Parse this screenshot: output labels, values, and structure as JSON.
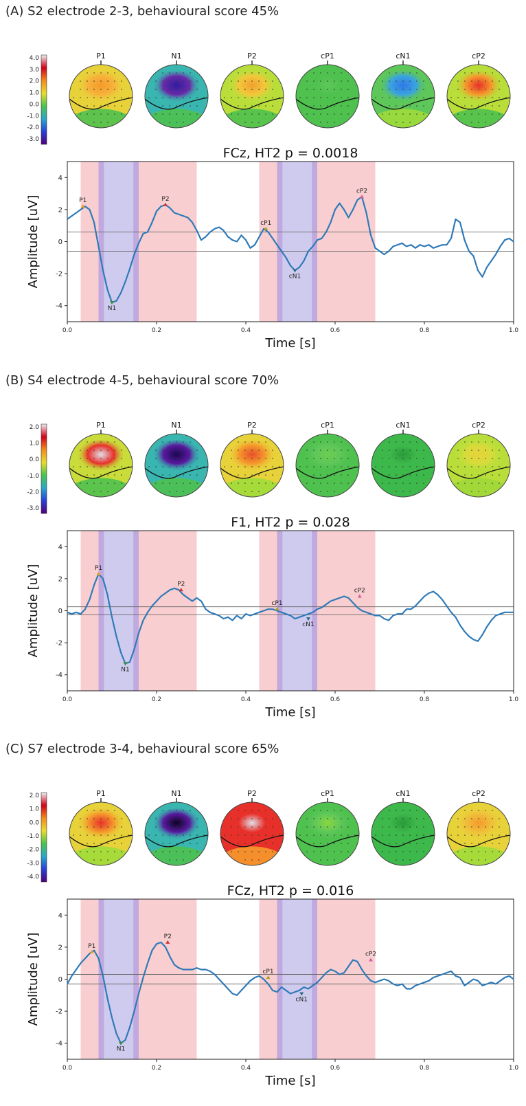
{
  "chart_data": [
    {
      "type": "line",
      "title": "(A) S2 electrode 2-3, behavioural score 45%",
      "subtitle": "FCz, HT2 p = 0.0018",
      "xlabel": "Time [s]",
      "ylabel": "Amplitude [uV]",
      "xlim": [
        0,
        1
      ],
      "ylim": [
        -5,
        5
      ],
      "xticks": [
        "0.0",
        "0.2",
        "0.4",
        "0.6",
        "0.8",
        "1.0"
      ],
      "yticks": [
        "-4",
        "-2",
        "0",
        "2",
        "4"
      ],
      "threshold_lines": [
        0.6,
        -0.6
      ],
      "windows": [
        {
          "start": 0.03,
          "end": 0.29,
          "color": "#f7c5c8"
        },
        {
          "start": 0.07,
          "end": 0.16,
          "color": "#c8caf5"
        },
        {
          "start": 0.43,
          "end": 0.69,
          "color": "#f7c5c8"
        },
        {
          "start": 0.47,
          "end": 0.56,
          "color": "#c8caf5"
        }
      ],
      "series": [
        {
          "x": [
            0,
            0.01,
            0.02,
            0.03,
            0.04,
            0.05,
            0.06,
            0.07,
            0.08,
            0.09,
            0.1,
            0.11,
            0.12,
            0.13,
            0.14,
            0.15,
            0.16,
            0.17,
            0.18,
            0.19,
            0.2,
            0.21,
            0.22,
            0.23,
            0.24,
            0.25,
            0.26,
            0.27,
            0.28,
            0.29,
            0.3,
            0.31,
            0.32,
            0.33,
            0.34,
            0.35,
            0.36,
            0.37,
            0.38,
            0.39,
            0.4,
            0.41,
            0.42,
            0.43,
            0.44,
            0.45,
            0.46,
            0.47,
            0.48,
            0.49,
            0.5,
            0.51,
            0.52,
            0.53,
            0.54,
            0.55,
            0.56,
            0.57,
            0.58,
            0.59,
            0.6,
            0.61,
            0.62,
            0.63,
            0.64,
            0.65,
            0.66,
            0.67,
            0.68,
            0.69,
            0.7,
            0.71,
            0.72,
            0.73,
            0.74,
            0.75,
            0.76,
            0.77,
            0.78,
            0.79,
            0.8,
            0.81,
            0.82,
            0.83,
            0.84,
            0.85,
            0.86,
            0.87,
            0.88,
            0.89,
            0.9,
            0.91,
            0.92,
            0.93,
            0.94,
            0.95,
            0.96,
            0.97,
            0.98,
            0.99,
            1.0
          ],
          "y": [
            1.4,
            1.6,
            1.8,
            2.0,
            2.2,
            2.0,
            1.2,
            -0.3,
            -1.8,
            -3.0,
            -3.8,
            -3.7,
            -3.2,
            -2.5,
            -1.7,
            -0.8,
            -0.1,
            0.5,
            0.6,
            1.2,
            1.9,
            2.2,
            2.3,
            2.1,
            1.8,
            1.7,
            1.6,
            1.5,
            1.2,
            0.7,
            0.1,
            0.3,
            0.6,
            0.8,
            0.9,
            0.7,
            0.3,
            0.1,
            0.0,
            0.4,
            0.1,
            -0.4,
            -0.2,
            0.3,
            0.8,
            0.6,
            0.2,
            -0.2,
            -0.6,
            -1.0,
            -1.5,
            -1.8,
            -1.6,
            -1.2,
            -0.6,
            -0.3,
            0.1,
            0.2,
            0.6,
            1.2,
            2.0,
            2.4,
            2.0,
            1.5,
            2.0,
            2.6,
            2.8,
            1.8,
            0.4,
            -0.4,
            -0.6,
            -0.8,
            -0.6,
            -0.3,
            -0.2,
            -0.1,
            -0.3,
            -0.2,
            -0.4,
            -0.2,
            -0.3,
            -0.2,
            -0.4,
            -0.3,
            -0.2,
            -0.2,
            0.2,
            1.4,
            1.2,
            0.1,
            -0.6,
            -0.9,
            -1.8,
            -2.2,
            -1.6,
            -1.2,
            -0.8,
            -0.3,
            0.1,
            0.2,
            0.0
          ]
        }
      ],
      "peaks": [
        {
          "label": "P1",
          "x": 0.035,
          "y": 2.2,
          "color": "#e8a020"
        },
        {
          "label": "N1",
          "x": 0.1,
          "y": -3.8,
          "color": "#3a8f3a"
        },
        {
          "label": "P2",
          "x": 0.22,
          "y": 2.3,
          "color": "#d23030"
        },
        {
          "label": "cP1",
          "x": 0.445,
          "y": 0.8,
          "color": "#b0a020"
        },
        {
          "label": "cN1",
          "x": 0.51,
          "y": -1.8,
          "color": "#2a6a8a"
        },
        {
          "label": "cP2",
          "x": 0.66,
          "y": 2.8,
          "color": "#d060a0"
        }
      ],
      "topomaps": {
        "labels": [
          "P1",
          "N1",
          "P2",
          "cP1",
          "cN1",
          "cP2"
        ],
        "colorbar_ticks": [
          "4.0",
          "3.0",
          "2.0",
          "1.0",
          "0.0",
          "-1.0",
          "-2.0",
          "-3.0"
        ],
        "colors": [
          {
            "base": "#e8d23a",
            "blob": "#f59a2c",
            "blob2": "#f6b23a",
            "lower": "#4fc14f"
          },
          {
            "base": "#39b6b0",
            "blob": "#2e1e9e",
            "blob2": "#6a2aa8",
            "lower": "#4fc14f"
          },
          {
            "base": "#b9de3a",
            "blob": "#f0a030",
            "blob2": "#f3c73a",
            "lower": "#4fc14f"
          },
          {
            "base": "#4fc14f",
            "blob": "#5ec75a",
            "blob2": "#4fc14f",
            "lower": "#4fc14f"
          },
          {
            "base": "#5ec75a",
            "blob": "#2f78e6",
            "blob2": "#3aa4e0",
            "lower": "#9fdc3a"
          },
          {
            "base": "#b9de3a",
            "blob": "#e8302a",
            "blob2": "#f59a2c",
            "lower": "#4fc14f"
          }
        ]
      }
    },
    {
      "type": "line",
      "title": "(B) S4 electrode 4-5, behavioural score 70%",
      "subtitle": "F1, HT2 p =  0.028",
      "xlabel": "Time [s]",
      "ylabel": "Amplitude [uV]",
      "xlim": [
        0,
        1
      ],
      "ylim": [
        -5,
        5
      ],
      "xticks": [
        "0.0",
        "0.2",
        "0.4",
        "0.6",
        "0.8",
        "1.0"
      ],
      "yticks": [
        "-4",
        "-2",
        "0",
        "2",
        "4"
      ],
      "threshold_lines": [
        0.25,
        -0.25
      ],
      "windows": [
        {
          "start": 0.03,
          "end": 0.29,
          "color": "#f7c5c8"
        },
        {
          "start": 0.07,
          "end": 0.16,
          "color": "#c8caf5"
        },
        {
          "start": 0.43,
          "end": 0.69,
          "color": "#f7c5c8"
        },
        {
          "start": 0.47,
          "end": 0.56,
          "color": "#c8caf5"
        }
      ],
      "series": [
        {
          "x": [
            0,
            0.01,
            0.02,
            0.03,
            0.04,
            0.05,
            0.06,
            0.07,
            0.08,
            0.09,
            0.1,
            0.11,
            0.12,
            0.13,
            0.14,
            0.15,
            0.16,
            0.17,
            0.18,
            0.19,
            0.2,
            0.21,
            0.22,
            0.23,
            0.24,
            0.25,
            0.26,
            0.27,
            0.28,
            0.29,
            0.3,
            0.31,
            0.32,
            0.33,
            0.34,
            0.35,
            0.36,
            0.37,
            0.38,
            0.39,
            0.4,
            0.41,
            0.42,
            0.43,
            0.44,
            0.45,
            0.46,
            0.47,
            0.48,
            0.49,
            0.5,
            0.51,
            0.52,
            0.53,
            0.54,
            0.55,
            0.56,
            0.57,
            0.58,
            0.59,
            0.6,
            0.61,
            0.62,
            0.63,
            0.64,
            0.65,
            0.66,
            0.67,
            0.68,
            0.69,
            0.7,
            0.71,
            0.72,
            0.73,
            0.74,
            0.75,
            0.76,
            0.77,
            0.78,
            0.79,
            0.8,
            0.81,
            0.82,
            0.83,
            0.84,
            0.85,
            0.86,
            0.87,
            0.88,
            0.89,
            0.9,
            0.91,
            0.92,
            0.93,
            0.94,
            0.95,
            0.96,
            0.97,
            0.98,
            0.99,
            1.0
          ],
          "y": [
            -0.1,
            -0.2,
            -0.1,
            -0.2,
            0.1,
            0.7,
            1.6,
            2.3,
            2.0,
            1.0,
            -0.4,
            -1.6,
            -2.6,
            -3.3,
            -3.2,
            -2.4,
            -1.4,
            -0.6,
            -0.1,
            0.3,
            0.6,
            0.9,
            1.1,
            1.3,
            1.4,
            1.3,
            1.0,
            0.8,
            0.6,
            0.8,
            0.6,
            0.1,
            -0.1,
            -0.2,
            -0.3,
            -0.5,
            -0.4,
            -0.6,
            -0.3,
            -0.5,
            -0.2,
            -0.3,
            -0.2,
            -0.1,
            0.0,
            0.1,
            0.1,
            0.0,
            -0.1,
            -0.2,
            -0.3,
            -0.5,
            -0.4,
            -0.3,
            -0.2,
            -0.1,
            0.1,
            0.2,
            0.4,
            0.6,
            0.7,
            0.8,
            0.9,
            0.8,
            0.5,
            0.2,
            0.0,
            -0.1,
            -0.2,
            -0.3,
            -0.3,
            -0.5,
            -0.6,
            -0.3,
            -0.2,
            -0.2,
            0.1,
            0.1,
            0.3,
            0.6,
            0.9,
            1.1,
            1.2,
            1.0,
            0.7,
            0.3,
            -0.1,
            -0.4,
            -0.9,
            -1.3,
            -1.6,
            -1.8,
            -1.9,
            -1.5,
            -1.0,
            -0.6,
            -0.3,
            -0.2,
            -0.1,
            -0.1,
            -0.1
          ]
        }
      ],
      "peaks": [
        {
          "label": "P1",
          "x": 0.07,
          "y": 2.3,
          "color": "#e8a020"
        },
        {
          "label": "N1",
          "x": 0.13,
          "y": -3.3,
          "color": "#3a8f3a"
        },
        {
          "label": "P2",
          "x": 0.255,
          "y": 1.3,
          "color": "#d23030"
        },
        {
          "label": "cP1",
          "x": 0.47,
          "y": 0.1,
          "color": "#b0a020"
        },
        {
          "label": "cN1",
          "x": 0.54,
          "y": -0.5,
          "color": "#2a6a8a"
        },
        {
          "label": "cP2",
          "x": 0.655,
          "y": 0.9,
          "color": "#d060a0"
        }
      ],
      "topomaps": {
        "labels": [
          "P1",
          "N1",
          "P2",
          "cP1",
          "cN1",
          "cP2"
        ],
        "colorbar_ticks": [
          "2.0",
          "1.0",
          "0.0",
          "-1.0",
          "-2.0",
          "-3.0"
        ],
        "colors": [
          {
            "base": "#c9dc3a",
            "blob": "#e0e0e8",
            "blob2": "#e8302a",
            "lower": "#4fc14f"
          },
          {
            "base": "#39b6b0",
            "blob": "#1a0850",
            "blob2": "#5a1aa0",
            "lower": "#4fc14f"
          },
          {
            "base": "#e8d23a",
            "blob": "#e8502a",
            "blob2": "#f59a2c",
            "lower": "#9fdc3a"
          },
          {
            "base": "#4fc14f",
            "blob": "#6ccd4f",
            "blob2": "#5ec75a",
            "lower": "#4fc14f"
          },
          {
            "base": "#3db84a",
            "blob": "#2a9a3a",
            "blob2": "#3db84a",
            "lower": "#3db84a"
          },
          {
            "base": "#b9de3a",
            "blob": "#e8d23a",
            "blob2": "#d6dc3a",
            "lower": "#a0d83a"
          }
        ]
      }
    },
    {
      "type": "line",
      "title": "(C) S7 electrode 3-4, behavioural score 65%",
      "subtitle": "FCz, HT2 p = 0.016",
      "xlabel": "Time [s]",
      "ylabel": "Amplitude [uV]",
      "xlim": [
        0,
        1
      ],
      "ylim": [
        -5,
        5
      ],
      "xticks": [
        "0.0",
        "0.2",
        "0.4",
        "0.6",
        "0.8",
        "1.0"
      ],
      "yticks": [
        "-4",
        "-2",
        "0",
        "2",
        "4"
      ],
      "threshold_lines": [
        0.3,
        -0.3
      ],
      "windows": [
        {
          "start": 0.03,
          "end": 0.29,
          "color": "#f7c5c8"
        },
        {
          "start": 0.07,
          "end": 0.16,
          "color": "#c8caf5"
        },
        {
          "start": 0.43,
          "end": 0.69,
          "color": "#f7c5c8"
        },
        {
          "start": 0.47,
          "end": 0.56,
          "color": "#c8caf5"
        }
      ],
      "series": [
        {
          "x": [
            0,
            0.01,
            0.02,
            0.03,
            0.04,
            0.05,
            0.06,
            0.07,
            0.08,
            0.09,
            0.1,
            0.11,
            0.12,
            0.13,
            0.14,
            0.15,
            0.16,
            0.17,
            0.18,
            0.19,
            0.2,
            0.21,
            0.22,
            0.23,
            0.24,
            0.25,
            0.26,
            0.27,
            0.28,
            0.29,
            0.3,
            0.31,
            0.32,
            0.33,
            0.34,
            0.35,
            0.36,
            0.37,
            0.38,
            0.39,
            0.4,
            0.41,
            0.42,
            0.43,
            0.44,
            0.45,
            0.46,
            0.47,
            0.48,
            0.49,
            0.5,
            0.51,
            0.52,
            0.53,
            0.54,
            0.55,
            0.56,
            0.57,
            0.58,
            0.59,
            0.6,
            0.61,
            0.62,
            0.63,
            0.64,
            0.65,
            0.66,
            0.67,
            0.68,
            0.69,
            0.7,
            0.71,
            0.72,
            0.73,
            0.74,
            0.75,
            0.76,
            0.77,
            0.78,
            0.79,
            0.8,
            0.81,
            0.82,
            0.83,
            0.84,
            0.85,
            0.86,
            0.87,
            0.88,
            0.89,
            0.9,
            0.91,
            0.92,
            0.93,
            0.94,
            0.95,
            0.96,
            0.97,
            0.98,
            0.99,
            1.0
          ],
          "y": [
            -0.3,
            0.2,
            0.6,
            1.0,
            1.3,
            1.6,
            1.8,
            1.3,
            0.2,
            -1.2,
            -2.4,
            -3.4,
            -4.0,
            -3.8,
            -3.0,
            -2.0,
            -0.9,
            0.1,
            1.0,
            1.8,
            2.2,
            2.3,
            2.0,
            1.4,
            0.9,
            0.7,
            0.6,
            0.6,
            0.6,
            0.7,
            0.6,
            0.6,
            0.5,
            0.3,
            0.0,
            -0.3,
            -0.6,
            -0.9,
            -1.0,
            -0.7,
            -0.4,
            -0.1,
            0.1,
            0.2,
            0.0,
            -0.3,
            -0.7,
            -0.8,
            -0.5,
            -0.7,
            -0.9,
            -0.8,
            -0.7,
            -0.5,
            -0.6,
            -0.4,
            -0.2,
            0.1,
            0.4,
            0.6,
            0.5,
            0.3,
            0.4,
            0.8,
            1.2,
            1.1,
            0.6,
            0.2,
            -0.1,
            -0.2,
            -0.1,
            0.0,
            -0.1,
            -0.3,
            -0.4,
            -0.3,
            -0.6,
            -0.6,
            -0.4,
            -0.3,
            -0.2,
            -0.1,
            0.1,
            0.2,
            0.3,
            0.4,
            0.5,
            0.2,
            0.1,
            -0.4,
            -0.2,
            0.0,
            -0.1,
            -0.4,
            -0.3,
            -0.2,
            -0.3,
            -0.1,
            0.1,
            0.2,
            0.0
          ]
        }
      ],
      "peaks": [
        {
          "label": "P1",
          "x": 0.055,
          "y": 1.7,
          "color": "#e8a020"
        },
        {
          "label": "N1",
          "x": 0.12,
          "y": -4.0,
          "color": "#3a8f3a"
        },
        {
          "label": "P2",
          "x": 0.225,
          "y": 2.3,
          "color": "#d23030"
        },
        {
          "label": "cP1",
          "x": 0.45,
          "y": 0.1,
          "color": "#b0a020"
        },
        {
          "label": "cN1",
          "x": 0.525,
          "y": -0.9,
          "color": "#2a6a8a"
        },
        {
          "label": "cP2",
          "x": 0.68,
          "y": 1.2,
          "color": "#d060a0"
        }
      ],
      "topomaps": {
        "labels": [
          "P1",
          "N1",
          "P2",
          "cP1",
          "cN1",
          "cP2"
        ],
        "colorbar_ticks": [
          "2.0",
          "1.0",
          "0.0",
          "-1.0",
          "-2.0",
          "-3.0",
          "-4.0"
        ],
        "colors": [
          {
            "base": "#e8d23a",
            "blob": "#e8302a",
            "blob2": "#f59a2c",
            "lower": "#9fdc3a"
          },
          {
            "base": "#39b6b0",
            "blob": "#0a0420",
            "blob2": "#5a1aa0",
            "lower": "#4fc14f"
          },
          {
            "base": "#e8302a",
            "blob": "#e0e0e8",
            "blob2": "#e8302a",
            "lower": "#f59a2c"
          },
          {
            "base": "#4fc14f",
            "blob": "#8ad63f",
            "blob2": "#5ec75a",
            "lower": "#4fc14f"
          },
          {
            "base": "#3db84a",
            "blob": "#2a9a3a",
            "blob2": "#3db84a",
            "lower": "#3db84a"
          },
          {
            "base": "#e8d23a",
            "blob": "#f59a2c",
            "blob2": "#f0c03a",
            "lower": "#9fdc3a"
          }
        ]
      }
    }
  ]
}
